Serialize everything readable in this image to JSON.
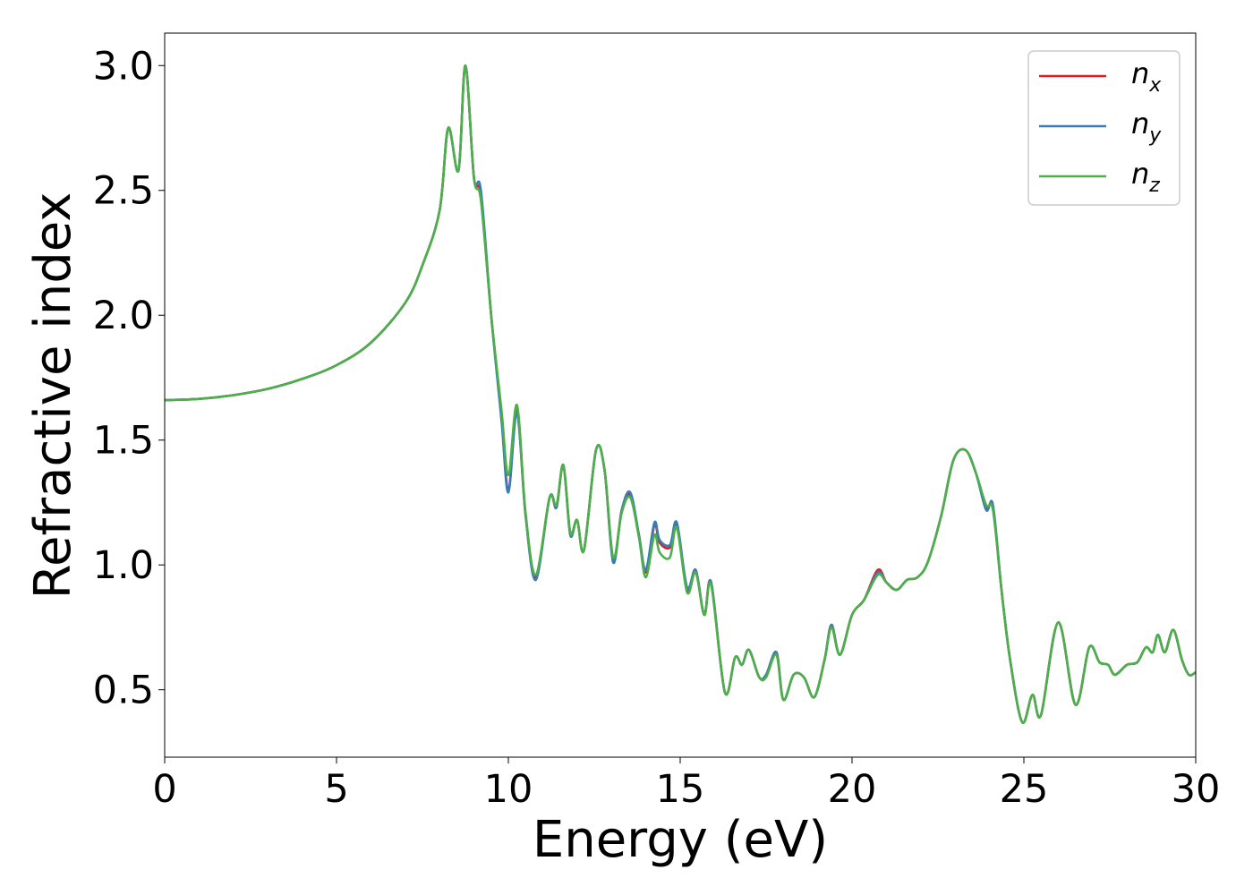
{
  "chart_data": {
    "type": "line",
    "title": "",
    "xlabel": "Energy (eV)",
    "ylabel": "Refractive index",
    "xlim": [
      0,
      30
    ],
    "ylim": [
      0.23,
      3.13
    ],
    "xticks": [
      0,
      5,
      10,
      15,
      20,
      25,
      30
    ],
    "xtick_labels": [
      "0",
      "5",
      "10",
      "15",
      "20",
      "25",
      "30"
    ],
    "yticks": [
      0.5,
      1.0,
      1.5,
      2.0,
      2.5,
      3.0
    ],
    "ytick_labels": [
      "0.5",
      "1.0",
      "1.5",
      "2.0",
      "2.5",
      "3.0"
    ],
    "grid": false,
    "legend_position": "top-right",
    "series": [
      {
        "name": "n",
        "subscript": "x",
        "color": "#e41a1c",
        "points": [
          [
            0,
            1.66
          ],
          [
            1,
            1.665
          ],
          [
            2,
            1.68
          ],
          [
            3,
            1.705
          ],
          [
            4,
            1.745
          ],
          [
            5,
            1.8
          ],
          [
            6,
            1.89
          ],
          [
            7,
            2.05
          ],
          [
            7.5,
            2.2
          ],
          [
            8,
            2.42
          ],
          [
            8.25,
            2.75
          ],
          [
            8.55,
            2.58
          ],
          [
            8.75,
            3.0
          ],
          [
            9.0,
            2.55
          ],
          [
            9.2,
            2.48
          ],
          [
            9.5,
            2.0
          ],
          [
            9.8,
            1.6
          ],
          [
            10.0,
            1.3
          ],
          [
            10.25,
            1.62
          ],
          [
            10.5,
            1.2
          ],
          [
            10.8,
            0.95
          ],
          [
            11.2,
            1.27
          ],
          [
            11.4,
            1.23
          ],
          [
            11.6,
            1.4
          ],
          [
            11.8,
            1.13
          ],
          [
            12.0,
            1.18
          ],
          [
            12.2,
            1.06
          ],
          [
            12.55,
            1.46
          ],
          [
            12.8,
            1.38
          ],
          [
            13.05,
            1.02
          ],
          [
            13.3,
            1.22
          ],
          [
            13.55,
            1.28
          ],
          [
            13.8,
            1.12
          ],
          [
            14.0,
            0.97
          ],
          [
            14.25,
            1.16
          ],
          [
            14.4,
            1.09
          ],
          [
            14.7,
            1.07
          ],
          [
            14.9,
            1.16
          ],
          [
            15.2,
            0.9
          ],
          [
            15.45,
            0.98
          ],
          [
            15.7,
            0.8
          ],
          [
            15.9,
            0.93
          ],
          [
            16.3,
            0.49
          ],
          [
            16.6,
            0.63
          ],
          [
            16.8,
            0.6
          ],
          [
            17.0,
            0.66
          ],
          [
            17.3,
            0.55
          ],
          [
            17.5,
            0.56
          ],
          [
            17.8,
            0.65
          ],
          [
            18.0,
            0.46
          ],
          [
            18.3,
            0.56
          ],
          [
            18.6,
            0.55
          ],
          [
            18.9,
            0.47
          ],
          [
            19.2,
            0.62
          ],
          [
            19.4,
            0.76
          ],
          [
            19.65,
            0.64
          ],
          [
            20.0,
            0.8
          ],
          [
            20.35,
            0.86
          ],
          [
            20.75,
            0.98
          ],
          [
            21.0,
            0.93
          ],
          [
            21.3,
            0.9
          ],
          [
            21.6,
            0.94
          ],
          [
            21.9,
            0.95
          ],
          [
            22.2,
            1.01
          ],
          [
            22.6,
            1.2
          ],
          [
            22.95,
            1.42
          ],
          [
            23.3,
            1.46
          ],
          [
            23.6,
            1.37
          ],
          [
            23.9,
            1.23
          ],
          [
            24.1,
            1.23
          ],
          [
            24.35,
            0.9
          ],
          [
            24.6,
            0.62
          ],
          [
            24.95,
            0.37
          ],
          [
            25.25,
            0.48
          ],
          [
            25.5,
            0.4
          ],
          [
            26.0,
            0.77
          ],
          [
            26.5,
            0.44
          ],
          [
            26.9,
            0.67
          ],
          [
            27.2,
            0.61
          ],
          [
            27.45,
            0.6
          ],
          [
            27.65,
            0.56
          ],
          [
            28.0,
            0.6
          ],
          [
            28.3,
            0.61
          ],
          [
            28.55,
            0.67
          ],
          [
            28.75,
            0.65
          ],
          [
            28.9,
            0.72
          ],
          [
            29.1,
            0.65
          ],
          [
            29.35,
            0.74
          ],
          [
            29.6,
            0.62
          ],
          [
            29.8,
            0.56
          ],
          [
            30,
            0.57
          ]
        ]
      },
      {
        "name": "n",
        "subscript": "y",
        "color": "#377eb8",
        "points": [
          [
            0,
            1.66
          ],
          [
            1,
            1.665
          ],
          [
            2,
            1.68
          ],
          [
            3,
            1.705
          ],
          [
            4,
            1.745
          ],
          [
            5,
            1.8
          ],
          [
            6,
            1.89
          ],
          [
            7,
            2.05
          ],
          [
            7.5,
            2.2
          ],
          [
            8,
            2.42
          ],
          [
            8.25,
            2.75
          ],
          [
            8.55,
            2.58
          ],
          [
            8.75,
            3.0
          ],
          [
            9.0,
            2.55
          ],
          [
            9.2,
            2.5
          ],
          [
            9.5,
            2.0
          ],
          [
            9.8,
            1.58
          ],
          [
            10.0,
            1.29
          ],
          [
            10.25,
            1.61
          ],
          [
            10.5,
            1.2
          ],
          [
            10.8,
            0.94
          ],
          [
            11.2,
            1.27
          ],
          [
            11.4,
            1.23
          ],
          [
            11.6,
            1.4
          ],
          [
            11.8,
            1.12
          ],
          [
            12.0,
            1.18
          ],
          [
            12.2,
            1.06
          ],
          [
            12.55,
            1.46
          ],
          [
            12.8,
            1.38
          ],
          [
            13.05,
            1.01
          ],
          [
            13.3,
            1.22
          ],
          [
            13.55,
            1.29
          ],
          [
            13.8,
            1.12
          ],
          [
            14.0,
            0.98
          ],
          [
            14.25,
            1.17
          ],
          [
            14.4,
            1.1
          ],
          [
            14.7,
            1.08
          ],
          [
            14.9,
            1.17
          ],
          [
            15.2,
            0.91
          ],
          [
            15.45,
            0.98
          ],
          [
            15.7,
            0.8
          ],
          [
            15.9,
            0.93
          ],
          [
            16.3,
            0.49
          ],
          [
            16.6,
            0.63
          ],
          [
            16.8,
            0.6
          ],
          [
            17.0,
            0.66
          ],
          [
            17.3,
            0.55
          ],
          [
            17.5,
            0.56
          ],
          [
            17.8,
            0.65
          ],
          [
            18.0,
            0.46
          ],
          [
            18.3,
            0.56
          ],
          [
            18.6,
            0.55
          ],
          [
            18.9,
            0.47
          ],
          [
            19.2,
            0.62
          ],
          [
            19.4,
            0.76
          ],
          [
            19.65,
            0.64
          ],
          [
            20.0,
            0.8
          ],
          [
            20.35,
            0.86
          ],
          [
            20.75,
            0.97
          ],
          [
            21.0,
            0.93
          ],
          [
            21.3,
            0.9
          ],
          [
            21.6,
            0.94
          ],
          [
            21.9,
            0.95
          ],
          [
            22.2,
            1.01
          ],
          [
            22.6,
            1.2
          ],
          [
            22.95,
            1.42
          ],
          [
            23.3,
            1.46
          ],
          [
            23.6,
            1.37
          ],
          [
            23.9,
            1.22
          ],
          [
            24.1,
            1.24
          ],
          [
            24.35,
            0.9
          ],
          [
            24.6,
            0.62
          ],
          [
            24.95,
            0.37
          ],
          [
            25.25,
            0.48
          ],
          [
            25.5,
            0.4
          ],
          [
            26.0,
            0.77
          ],
          [
            26.5,
            0.44
          ],
          [
            26.9,
            0.67
          ],
          [
            27.2,
            0.61
          ],
          [
            27.45,
            0.6
          ],
          [
            27.65,
            0.56
          ],
          [
            28.0,
            0.6
          ],
          [
            28.3,
            0.61
          ],
          [
            28.55,
            0.67
          ],
          [
            28.75,
            0.65
          ],
          [
            28.9,
            0.72
          ],
          [
            29.1,
            0.65
          ],
          [
            29.35,
            0.74
          ],
          [
            29.6,
            0.62
          ],
          [
            29.8,
            0.56
          ],
          [
            30,
            0.57
          ]
        ]
      },
      {
        "name": "n",
        "subscript": "z",
        "color": "#4daf4a",
        "points": [
          [
            0,
            1.66
          ],
          [
            1,
            1.665
          ],
          [
            2,
            1.68
          ],
          [
            3,
            1.705
          ],
          [
            4,
            1.745
          ],
          [
            5,
            1.8
          ],
          [
            6,
            1.89
          ],
          [
            7,
            2.05
          ],
          [
            7.5,
            2.2
          ],
          [
            8,
            2.42
          ],
          [
            8.25,
            2.75
          ],
          [
            8.55,
            2.58
          ],
          [
            8.75,
            3.0
          ],
          [
            9.0,
            2.55
          ],
          [
            9.2,
            2.46
          ],
          [
            9.5,
            2.0
          ],
          [
            9.8,
            1.62
          ],
          [
            10.0,
            1.36
          ],
          [
            10.25,
            1.64
          ],
          [
            10.5,
            1.21
          ],
          [
            10.8,
            0.96
          ],
          [
            11.2,
            1.27
          ],
          [
            11.4,
            1.24
          ],
          [
            11.6,
            1.4
          ],
          [
            11.8,
            1.13
          ],
          [
            12.0,
            1.18
          ],
          [
            12.2,
            1.06
          ],
          [
            12.55,
            1.46
          ],
          [
            12.8,
            1.38
          ],
          [
            13.05,
            1.03
          ],
          [
            13.3,
            1.21
          ],
          [
            13.55,
            1.27
          ],
          [
            13.8,
            1.11
          ],
          [
            14.0,
            0.95
          ],
          [
            14.25,
            1.12
          ],
          [
            14.4,
            1.05
          ],
          [
            14.7,
            1.03
          ],
          [
            14.9,
            1.15
          ],
          [
            15.2,
            0.89
          ],
          [
            15.45,
            0.97
          ],
          [
            15.7,
            0.8
          ],
          [
            15.9,
            0.92
          ],
          [
            16.3,
            0.49
          ],
          [
            16.6,
            0.63
          ],
          [
            16.8,
            0.6
          ],
          [
            17.0,
            0.66
          ],
          [
            17.3,
            0.55
          ],
          [
            17.5,
            0.55
          ],
          [
            17.8,
            0.64
          ],
          [
            18.0,
            0.46
          ],
          [
            18.3,
            0.56
          ],
          [
            18.6,
            0.55
          ],
          [
            18.9,
            0.47
          ],
          [
            19.2,
            0.62
          ],
          [
            19.4,
            0.75
          ],
          [
            19.65,
            0.64
          ],
          [
            20.0,
            0.8
          ],
          [
            20.35,
            0.86
          ],
          [
            20.75,
            0.96
          ],
          [
            21.0,
            0.93
          ],
          [
            21.3,
            0.9
          ],
          [
            21.6,
            0.94
          ],
          [
            21.9,
            0.95
          ],
          [
            22.2,
            1.01
          ],
          [
            22.6,
            1.2
          ],
          [
            22.95,
            1.42
          ],
          [
            23.3,
            1.46
          ],
          [
            23.6,
            1.37
          ],
          [
            23.9,
            1.24
          ],
          [
            24.1,
            1.22
          ],
          [
            24.35,
            0.9
          ],
          [
            24.6,
            0.62
          ],
          [
            24.95,
            0.37
          ],
          [
            25.25,
            0.48
          ],
          [
            25.5,
            0.4
          ],
          [
            26.0,
            0.77
          ],
          [
            26.5,
            0.44
          ],
          [
            26.9,
            0.67
          ],
          [
            27.2,
            0.61
          ],
          [
            27.45,
            0.6
          ],
          [
            27.65,
            0.56
          ],
          [
            28.0,
            0.6
          ],
          [
            28.3,
            0.61
          ],
          [
            28.55,
            0.67
          ],
          [
            28.75,
            0.65
          ],
          [
            28.9,
            0.72
          ],
          [
            29.1,
            0.65
          ],
          [
            29.35,
            0.74
          ],
          [
            29.6,
            0.62
          ],
          [
            29.8,
            0.56
          ],
          [
            30,
            0.57
          ]
        ]
      }
    ]
  }
}
